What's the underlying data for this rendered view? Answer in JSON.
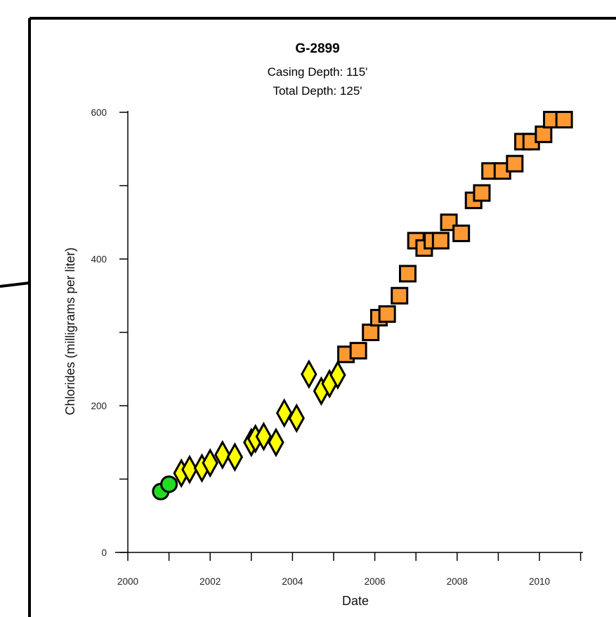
{
  "chart_data": {
    "type": "scatter",
    "title": "G-2899",
    "subtitle_lines": [
      "Casing Depth:  115'",
      "Total Depth:  125'"
    ],
    "xlabel": "Date",
    "ylabel": "Chlorides (milligrams per liter)",
    "xlim": [
      2000,
      2011.1
    ],
    "ylim": [
      0,
      600
    ],
    "x_ticks": [
      2000,
      2002,
      2004,
      2006,
      2008,
      2010
    ],
    "y_ticks": [
      0,
      200,
      400,
      600
    ],
    "grid": false,
    "legend": "none",
    "series": [
      {
        "marker": "circle",
        "color": "#22dd22",
        "points": [
          [
            2000.8,
            83
          ],
          [
            2001.0,
            93
          ]
        ]
      },
      {
        "marker": "diamond",
        "color": "#ffff00",
        "points": [
          [
            2001.3,
            108
          ],
          [
            2001.5,
            113
          ],
          [
            2001.8,
            115
          ],
          [
            2002.0,
            122
          ],
          [
            2002.3,
            133
          ],
          [
            2002.6,
            130
          ],
          [
            2003.0,
            150
          ],
          [
            2003.1,
            155
          ],
          [
            2003.3,
            158
          ],
          [
            2003.6,
            150
          ],
          [
            2003.8,
            190
          ],
          [
            2004.1,
            183
          ],
          [
            2004.4,
            243
          ],
          [
            2004.7,
            220
          ],
          [
            2004.9,
            230
          ],
          [
            2005.1,
            242
          ]
        ]
      },
      {
        "marker": "square",
        "color": "#ff9933",
        "points": [
          [
            2005.3,
            270
          ],
          [
            2005.6,
            275
          ],
          [
            2005.9,
            300
          ],
          [
            2006.1,
            320
          ],
          [
            2006.3,
            325
          ],
          [
            2006.6,
            350
          ],
          [
            2006.8,
            380
          ],
          [
            2007.0,
            425
          ],
          [
            2007.2,
            415
          ],
          [
            2007.4,
            425
          ],
          [
            2007.6,
            425
          ],
          [
            2007.8,
            450
          ],
          [
            2008.1,
            435
          ],
          [
            2008.4,
            480
          ],
          [
            2008.6,
            490
          ],
          [
            2008.8,
            520
          ],
          [
            2009.1,
            520
          ],
          [
            2009.4,
            530
          ],
          [
            2009.6,
            560
          ],
          [
            2009.8,
            560
          ],
          [
            2010.1,
            570
          ],
          [
            2010.3,
            590
          ],
          [
            2010.6,
            590
          ]
        ]
      }
    ]
  }
}
